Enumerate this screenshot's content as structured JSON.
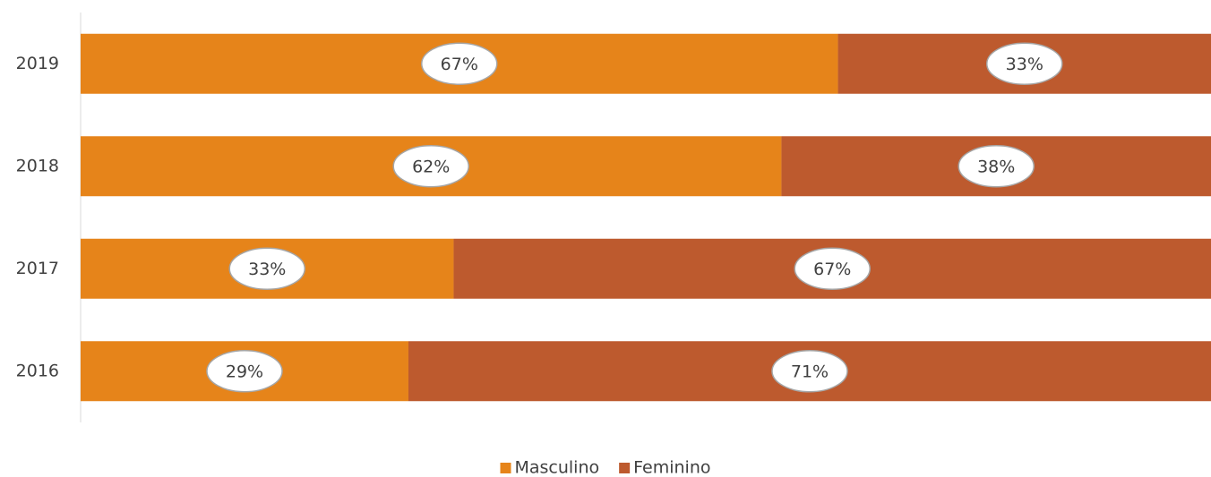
{
  "chart_data": {
    "type": "stacked_bar_horizontal",
    "categories": [
      "2019",
      "2018",
      "2017",
      "2016"
    ],
    "xlim": [
      0,
      100
    ],
    "legend": "bottom",
    "series": [
      {
        "name": "Masculino",
        "color": "#e6841a",
        "values": [
          67,
          62,
          33,
          29
        ],
        "value_labels": [
          "67%",
          "62%",
          "33%",
          "29%"
        ]
      },
      {
        "name": "Feminino",
        "color": "#bd5a2e",
        "values": [
          33,
          38,
          67,
          71
        ],
        "value_labels": [
          "33%",
          "38%",
          "67%",
          "71%"
        ]
      }
    ]
  }
}
